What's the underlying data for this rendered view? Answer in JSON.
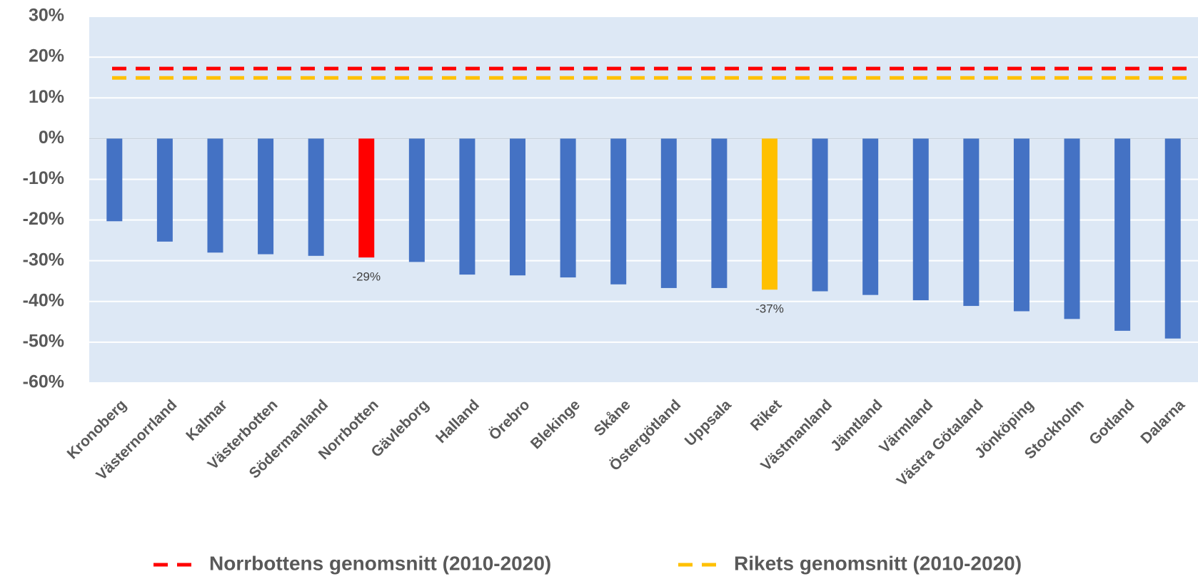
{
  "chart_data": {
    "type": "bar",
    "categories": [
      "Kronoberg",
      "Västernorrland",
      "Kalmar",
      "Västerbotten",
      "Södermanland",
      "Norrbotten",
      "Gävleborg",
      "Halland",
      "Örebro",
      "Blekinge",
      "Skåne",
      "Östergötland",
      "Uppsala",
      "Riket",
      "Västmanland",
      "Jämtland",
      "Värmland",
      "Västra Götaland",
      "Jönköping",
      "Stockholm",
      "Gotland",
      "Dalarna"
    ],
    "values": [
      -20.3,
      -25.3,
      -28.0,
      -28.4,
      -28.8,
      -29.2,
      -30.3,
      -33.4,
      -33.6,
      -34.1,
      -35.8,
      -36.7,
      -36.7,
      -37.1,
      -37.5,
      -38.4,
      -39.7,
      -41.1,
      -42.4,
      -44.3,
      -47.2,
      -49.1
    ],
    "value_labels": [
      null,
      null,
      null,
      null,
      null,
      "-29%",
      null,
      null,
      null,
      null,
      null,
      null,
      null,
      "-37%",
      null,
      null,
      null,
      null,
      null,
      null,
      null,
      null
    ],
    "colors": [
      "#4472c4",
      "#4472c4",
      "#4472c4",
      "#4472c4",
      "#4472c4",
      "#ff0000",
      "#4472c4",
      "#4472c4",
      "#4472c4",
      "#4472c4",
      "#4472c4",
      "#4472c4",
      "#4472c4",
      "#ffc000",
      "#4472c4",
      "#4472c4",
      "#4472c4",
      "#4472c4",
      "#4472c4",
      "#4472c4",
      "#4472c4",
      "#4472c4"
    ],
    "reference_lines": [
      {
        "name": "Norrbottens genomsnitt (2010-2020)",
        "color": "#ff0000",
        "value": 17.2
      },
      {
        "name": "Rikets genomsnitt (2010-2020)",
        "color": "#ffc000",
        "value": 14.9
      }
    ],
    "ylim": [
      -60,
      30
    ],
    "yticks": [
      {
        "value": -60,
        "label": "-60%"
      },
      {
        "value": -50,
        "label": "-50%"
      },
      {
        "value": -40,
        "label": "-40%"
      },
      {
        "value": -30,
        "label": "-30%"
      },
      {
        "value": -20,
        "label": "-20%"
      },
      {
        "value": -10,
        "label": "-10%"
      },
      {
        "value": 0,
        "label": "0%"
      },
      {
        "value": 10,
        "label": "10%"
      },
      {
        "value": 20,
        "label": "20%"
      },
      {
        "value": 30,
        "label": "30%"
      }
    ],
    "grid": true,
    "legend": "bottom"
  }
}
